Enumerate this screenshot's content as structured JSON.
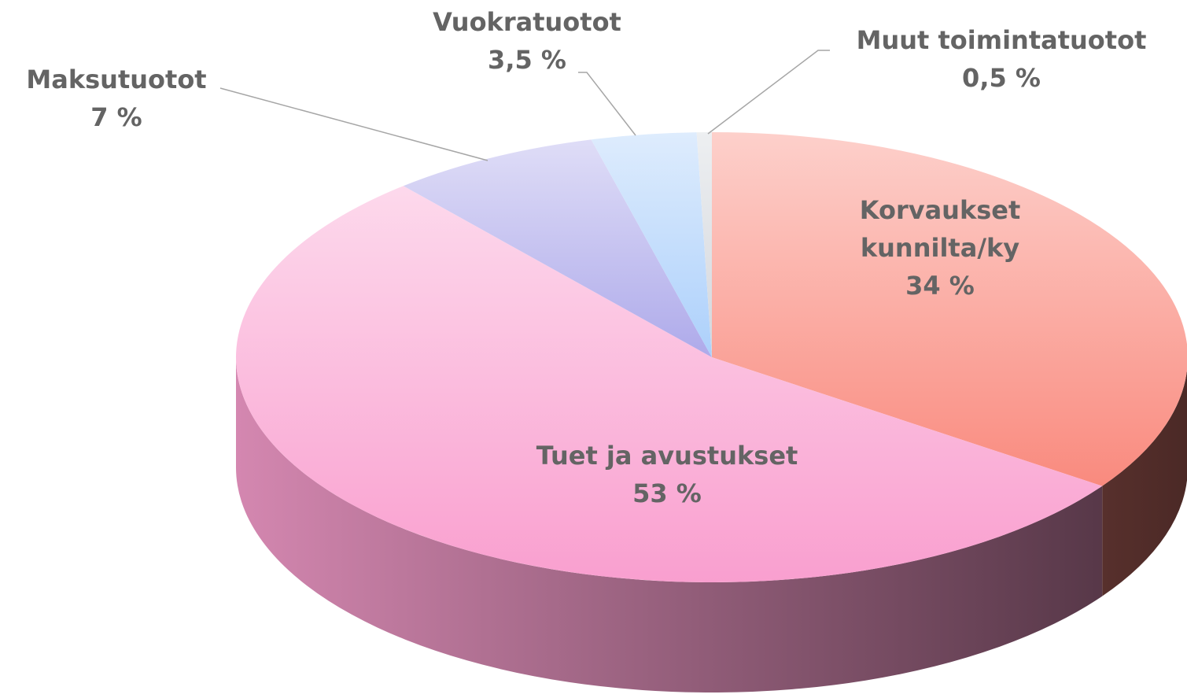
{
  "chart_data": {
    "type": "pie",
    "categories": [
      "Korvaukset kunnilta/ky",
      "Tuet ja avustukset",
      "Maksutuotot",
      "Vuokratuotot",
      "Muut toimintatuotot"
    ],
    "values": [
      34,
      53,
      7,
      3.5,
      0.5
    ],
    "value_labels": [
      "34 %",
      "53 %",
      "7 %",
      "3,5 %",
      "0,5 %"
    ],
    "colors": [
      "#f98a7e",
      "#f99fcf",
      "#aeaaea",
      "#acd0fb",
      "#d3d6dc"
    ]
  }
}
